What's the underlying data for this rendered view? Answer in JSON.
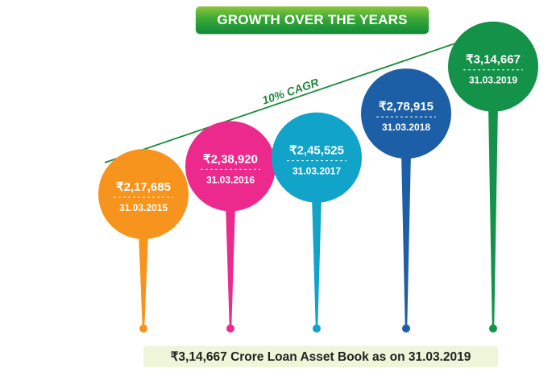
{
  "header": {
    "title": "GROWTH OVER THE YEARS"
  },
  "chart_data": {
    "type": "bar",
    "title": "GROWTH OVER THE YEARS",
    "categories": [
      "31.03.2015",
      "31.03.2016",
      "31.03.2017",
      "31.03.2018",
      "31.03.2019"
    ],
    "values": [
      217685,
      238920,
      245525,
      278915,
      314667
    ],
    "value_labels": [
      "₹2,17,685",
      "₹2,38,920",
      "₹2,45,525",
      "₹2,78,915",
      "₹3,14,667"
    ],
    "colors": [
      "#f7941d",
      "#ec2a8e",
      "#12a3c9",
      "#1d5fa6",
      "#15924a"
    ],
    "trend_label": "10% CAGR",
    "trend_color": "#1e8a3c"
  },
  "footer": {
    "text": "₹3,14,667 Crore Loan Asset Book as on 31.03.2019"
  }
}
